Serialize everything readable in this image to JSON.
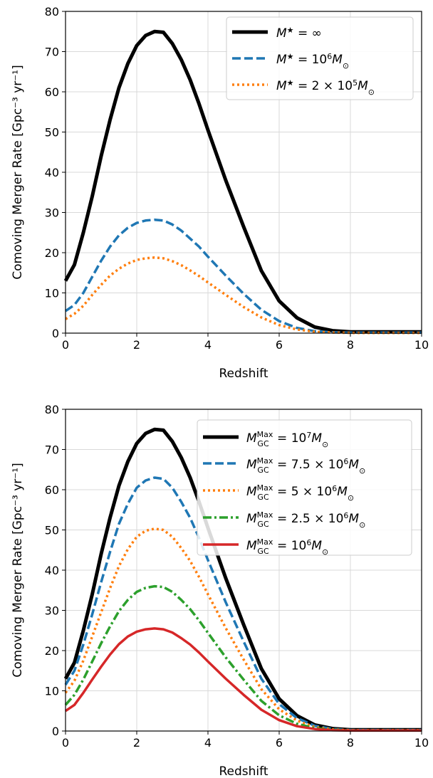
{
  "chart_data": [
    {
      "type": "line",
      "xlabel": "Redshift",
      "ylabel": "Comoving Merger Rate [Gpc⁻³ yr⁻¹]",
      "xlim": [
        0,
        10
      ],
      "ylim": [
        0,
        80
      ],
      "xticks": [
        "0",
        "2",
        "4",
        "6",
        "8",
        "10"
      ],
      "yticks": [
        "0",
        "10",
        "20",
        "30",
        "40",
        "50",
        "60",
        "70",
        "80"
      ],
      "grid": true,
      "legend_position": "top-right",
      "x": [
        0,
        0.25,
        0.5,
        0.75,
        1.0,
        1.25,
        1.5,
        1.75,
        2.0,
        2.25,
        2.5,
        2.75,
        3.0,
        3.25,
        3.5,
        3.75,
        4.0,
        4.5,
        5.0,
        5.5,
        6.0,
        6.5,
        7.0,
        7.5,
        8.0,
        8.5,
        9.0,
        9.5,
        10.0
      ],
      "series": [
        {
          "name": "M⋆ = ∞",
          "style": "solid",
          "color": "#000000",
          "values": [
            13,
            17,
            25,
            34,
            44,
            53,
            61,
            67,
            71.5,
            74,
            75,
            74.8,
            72,
            68,
            63,
            57,
            50.5,
            38,
            26.5,
            15.5,
            8,
            3.8,
            1.5,
            0.6,
            0.3,
            0.3,
            0.3,
            0.3,
            0.3
          ]
        },
        {
          "name": "M⋆ = 10⁶M⊙",
          "style": "dashed",
          "color": "#1f77b4",
          "values": [
            5.5,
            7,
            10,
            14,
            18,
            21.5,
            24.3,
            26.2,
            27.4,
            28,
            28.2,
            28,
            27,
            25.5,
            23.5,
            21.5,
            19,
            14.3,
            9.8,
            5.8,
            3,
            1.3,
            0.5,
            0.2,
            0.1,
            0.1,
            0.1,
            0.1,
            0.1
          ]
        },
        {
          "name": "M⋆ = 2 × 10⁵M⊙",
          "style": "dotted",
          "color": "#ff7f0e",
          "values": [
            3.5,
            4.8,
            6.8,
            9.5,
            12,
            14.3,
            16,
            17.3,
            18.2,
            18.6,
            18.8,
            18.6,
            17.9,
            16.9,
            15.6,
            14.2,
            12.6,
            9.5,
            6.5,
            3.9,
            2,
            0.9,
            0.35,
            0.15,
            0.05,
            0.05,
            0.05,
            0.05,
            0.05
          ]
        }
      ]
    },
    {
      "type": "line",
      "xlabel": "Redshift",
      "ylabel": "Comoving Merger Rate [Gpc⁻³ yr⁻¹]",
      "xlim": [
        0,
        10
      ],
      "ylim": [
        0,
        80
      ],
      "xticks": [
        "0",
        "2",
        "4",
        "6",
        "8",
        "10"
      ],
      "yticks": [
        "0",
        "10",
        "20",
        "30",
        "40",
        "50",
        "60",
        "70",
        "80"
      ],
      "grid": true,
      "legend_position": "top-right",
      "x": [
        0,
        0.25,
        0.5,
        0.75,
        1.0,
        1.25,
        1.5,
        1.75,
        2.0,
        2.25,
        2.5,
        2.75,
        3.0,
        3.25,
        3.5,
        3.75,
        4.0,
        4.5,
        5.0,
        5.5,
        6.0,
        6.5,
        7.0,
        7.5,
        8.0,
        8.5,
        9.0,
        9.5,
        10.0
      ],
      "series": [
        {
          "name": "M_GC^Max = 10⁷M⊙",
          "style": "solid",
          "color": "#000000",
          "values": [
            13,
            17,
            25,
            34,
            44,
            53,
            61,
            67,
            71.5,
            74,
            75,
            74.8,
            72,
            68,
            63,
            57,
            50.5,
            38,
            26.5,
            15.5,
            8,
            3.8,
            1.5,
            0.6,
            0.3,
            0.3,
            0.3,
            0.3,
            0.3
          ]
        },
        {
          "name": "M_GC^Max = 7.5 × 10⁶M⊙",
          "style": "dashed",
          "color": "#1f77b4",
          "values": [
            11.5,
            15,
            21.5,
            29,
            37,
            44.5,
            51.5,
            56.5,
            60.5,
            62.3,
            63,
            62.7,
            60.5,
            57,
            53,
            48,
            42.5,
            32,
            22.3,
            13,
            6.7,
            3.2,
            1.3,
            0.5,
            0.25,
            0.25,
            0.25,
            0.25,
            0.25
          ]
        },
        {
          "name": "M_GC^Max = 5 × 10⁶M⊙",
          "style": "dotted",
          "color": "#ff7f0e",
          "values": [
            9.5,
            12.5,
            17.5,
            23.5,
            29.5,
            35.5,
            41,
            45.2,
            48.3,
            49.8,
            50.3,
            50,
            48.3,
            45.5,
            42.3,
            38.3,
            34,
            25.6,
            17.8,
            10.4,
            5.4,
            2.6,
            1,
            0.4,
            0.2,
            0.2,
            0.2,
            0.2,
            0.2
          ]
        },
        {
          "name": "M_GC^Max = 2.5 × 10⁶M⊙",
          "style": "dashdot",
          "color": "#2ca02c",
          "values": [
            6.5,
            9,
            12.8,
            17.3,
            21.8,
            26,
            29.8,
            32.6,
            34.6,
            35.6,
            36,
            35.8,
            34.6,
            32.6,
            30.3,
            27.5,
            24.4,
            18.3,
            12.8,
            7.5,
            3.9,
            1.8,
            0.7,
            0.3,
            0.15,
            0.15,
            0.15,
            0.15,
            0.15
          ]
        },
        {
          "name": "M_GC^Max = 10⁶M⊙",
          "style": "solid",
          "color": "#d62728",
          "values": [
            5,
            6.5,
            9.5,
            12.8,
            16,
            19,
            21.6,
            23.5,
            24.7,
            25.3,
            25.5,
            25.3,
            24.5,
            23.1,
            21.5,
            19.5,
            17.3,
            13,
            9,
            5.3,
            2.7,
            1.2,
            0.5,
            0.2,
            0.1,
            0.1,
            0.1,
            0.1,
            0.1
          ]
        }
      ]
    }
  ]
}
